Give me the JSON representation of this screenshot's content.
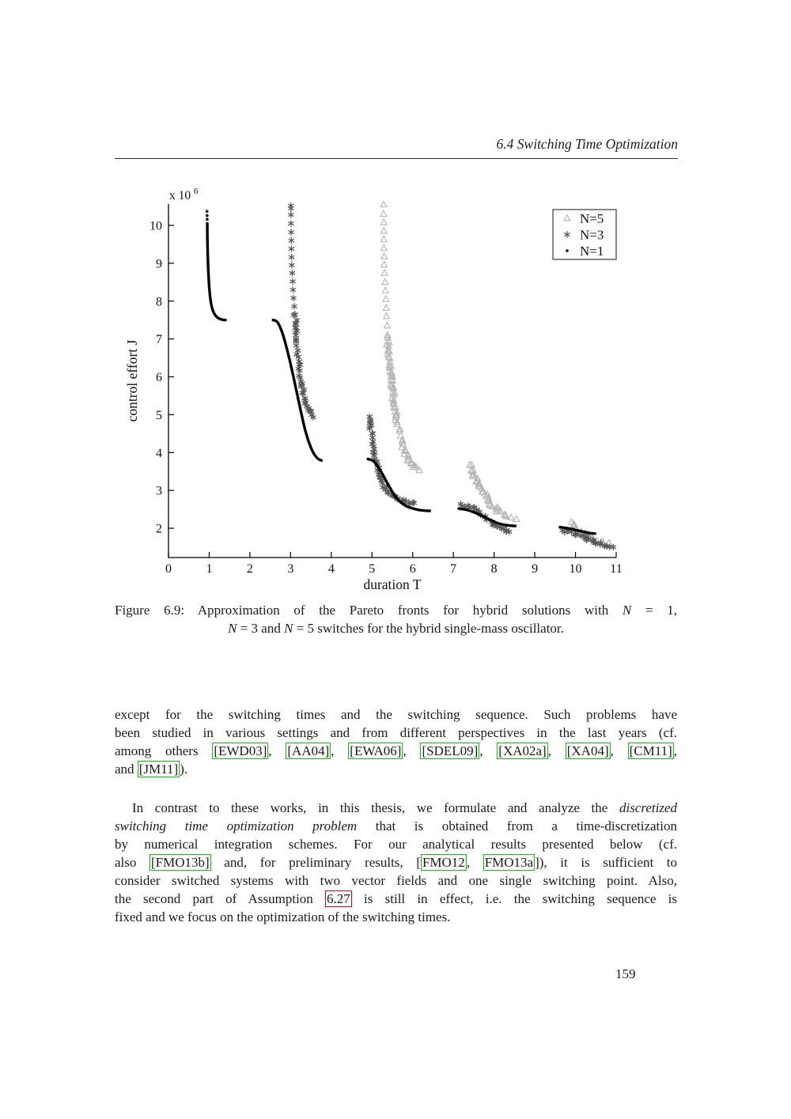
{
  "header": {
    "title": "6.4 Switching Time Optimization"
  },
  "page": {
    "number": "159"
  },
  "links": {
    "cite_border_color": "#00cc00",
    "ref_border_color": "#e60000"
  },
  "figure_caption": {
    "lines": [
      {
        "align": "justify",
        "segs": [
          {
            "t": "Figure 6.9: Approximation of the Pareto fronts for hybrid solutions with ",
            "s": "p"
          },
          {
            "t": "N",
            "s": "i"
          },
          {
            "t": " = 1,",
            "s": "p"
          }
        ]
      },
      {
        "align": "center",
        "segs": [
          {
            "t": "N",
            "s": "i"
          },
          {
            "t": " = 3 and ",
            "s": "p"
          },
          {
            "t": "N",
            "s": "i"
          },
          {
            "t": " = 5 switches for the hybrid single-mass oscillator.",
            "s": "p"
          }
        ]
      }
    ]
  },
  "paragraphs": {
    "p1": {
      "lines": [
        {
          "align": "justify",
          "segs": [
            {
              "t": "except for the switching times and the switching sequence.  Such problems have",
              "s": "p"
            }
          ]
        },
        {
          "align": "justify",
          "segs": [
            {
              "t": "been studied in various settings and from different perspectives in the last years (cf.",
              "s": "p"
            }
          ]
        },
        {
          "align": "justify",
          "segs": [
            {
              "t": "among others ",
              "s": "p"
            },
            {
              "t": "[EWD03]",
              "s": "g"
            },
            {
              "t": ", ",
              "s": "p"
            },
            {
              "t": "[AA04]",
              "s": "g"
            },
            {
              "t": ", ",
              "s": "p"
            },
            {
              "t": "[EWA06]",
              "s": "g"
            },
            {
              "t": ", ",
              "s": "p"
            },
            {
              "t": "[SDEL09]",
              "s": "g"
            },
            {
              "t": ", ",
              "s": "p"
            },
            {
              "t": "[XA02a]",
              "s": "g"
            },
            {
              "t": ", ",
              "s": "p"
            },
            {
              "t": "[XA04]",
              "s": "g"
            },
            {
              "t": ", ",
              "s": "p"
            },
            {
              "t": "[CM11]",
              "s": "g"
            },
            {
              "t": ",",
              "s": "p"
            }
          ]
        },
        {
          "align": "left",
          "segs": [
            {
              "t": "and ",
              "s": "p"
            },
            {
              "t": "[JM11]",
              "s": "g"
            },
            {
              "t": ").",
              "s": "p"
            }
          ]
        }
      ]
    },
    "p2": {
      "lines": [
        {
          "align": "justify",
          "indent": true,
          "segs": [
            {
              "t": "In contrast to these works, in this thesis, we formulate and analyze the ",
              "s": "p"
            },
            {
              "t": "discretized",
              "s": "i"
            }
          ]
        },
        {
          "align": "justify",
          "segs": [
            {
              "t": "switching time optimization problem",
              "s": "i"
            },
            {
              "t": " that is obtained from a time-discretization",
              "s": "p"
            }
          ]
        },
        {
          "align": "justify",
          "segs": [
            {
              "t": "by numerical integration schemes.  For our analytical results presented below (cf.",
              "s": "p"
            }
          ]
        },
        {
          "align": "justify",
          "segs": [
            {
              "t": "also ",
              "s": "p"
            },
            {
              "t": "[FMO13b]",
              "s": "g"
            },
            {
              "t": " and, for preliminary results, [",
              "s": "p"
            },
            {
              "t": "FMO12",
              "s": "g"
            },
            {
              "t": ", ",
              "s": "p"
            },
            {
              "t": "FMO13a",
              "s": "g"
            },
            {
              "t": "]), it is sufficient to",
              "s": "p"
            }
          ]
        },
        {
          "align": "justify",
          "segs": [
            {
              "t": "consider switched systems with two vector fields and one single switching point.  Also,",
              "s": "p"
            }
          ]
        },
        {
          "align": "justify",
          "segs": [
            {
              "t": "the second part of Assumption ",
              "s": "p"
            },
            {
              "t": "6.27",
              "s": "r"
            },
            {
              "t": " is still in effect, i.e. the switching sequence is",
              "s": "p"
            }
          ]
        },
        {
          "align": "left",
          "segs": [
            {
              "t": "fixed and we focus on the optimization of the switching times.",
              "s": "p"
            }
          ]
        }
      ]
    }
  },
  "chart_data": {
    "type": "scatter",
    "title": "",
    "xlabel": "duration T",
    "ylabel": "control effort J",
    "y_exponent_label": "x 10",
    "y_exponent": "6",
    "y_units": "values of J are in units of 1e6",
    "xlim": [
      0,
      11
    ],
    "ylim": [
      1.23,
      10.56
    ],
    "x_ticks": [
      0,
      1,
      2,
      3,
      4,
      5,
      6,
      7,
      8,
      9,
      10,
      11
    ],
    "y_ticks": [
      2,
      3,
      4,
      5,
      6,
      7,
      8,
      9,
      10
    ],
    "grid": false,
    "legend": {
      "position": "top-right",
      "entries": [
        {
          "label": "N=5",
          "marker": "triangle",
          "color": "#b4b4b4"
        },
        {
          "label": "N=3",
          "marker": "asterisk",
          "color": "#585858"
        },
        {
          "label": "N=1",
          "marker": "dot",
          "color": "#000000"
        }
      ]
    },
    "series": [
      {
        "name": "N=5",
        "marker": "triangle",
        "color": "#b4b4b4",
        "render": "scatter",
        "seed": 11,
        "segments": [
          {
            "per_point": true,
            "points": [
              [
                5.285,
                10.55
              ],
              [
                5.285,
                10.3
              ],
              [
                5.29,
                10.08
              ],
              [
                5.29,
                9.85
              ],
              [
                5.29,
                9.63
              ],
              [
                5.295,
                9.4
              ],
              [
                5.3,
                9.18
              ],
              [
                5.3,
                8.96
              ],
              [
                5.31,
                8.74
              ],
              [
                5.32,
                8.5
              ],
              [
                5.33,
                8.28
              ],
              [
                5.34,
                8.05
              ],
              [
                5.35,
                7.82
              ],
              [
                5.36,
                7.6
              ],
              [
                5.37,
                7.35
              ],
              [
                5.38,
                7.1
              ]
            ]
          },
          {
            "spacing": 2.2,
            "jitter": 2.2,
            "points": [
              [
                5.38,
                7.1
              ],
              [
                5.44,
                6.3
              ],
              [
                5.52,
                5.55
              ],
              [
                5.63,
                4.8
              ],
              [
                5.77,
                4.15
              ],
              [
                5.92,
                3.75
              ],
              [
                6.08,
                3.6
              ],
              [
                6.17,
                3.56
              ]
            ]
          },
          {
            "spacing": 2.0,
            "jitter": 2.6,
            "points": [
              [
                7.4,
                3.67
              ],
              [
                7.52,
                3.38
              ],
              [
                7.68,
                3.05
              ],
              [
                7.88,
                2.72
              ],
              [
                8.08,
                2.48
              ],
              [
                8.28,
                2.33
              ]
            ]
          },
          {
            "per_point": true,
            "points": [
              [
                8.3,
                2.31
              ],
              [
                8.42,
                2.28
              ],
              [
                8.55,
                2.24
              ]
            ]
          },
          {
            "spacing": 2.2,
            "jitter": 2.4,
            "points": [
              [
                9.9,
                2.16
              ],
              [
                9.98,
                2.08
              ],
              [
                10.1,
                1.95
              ],
              [
                10.25,
                1.82
              ],
              [
                10.4,
                1.72
              ],
              [
                10.5,
                1.68
              ]
            ]
          },
          {
            "per_point": true,
            "points": [
              [
                10.52,
                1.67
              ],
              [
                10.66,
                1.64
              ],
              [
                10.82,
                1.61
              ]
            ]
          }
        ]
      },
      {
        "name": "N=3",
        "marker": "asterisk",
        "color": "#585858",
        "render": "scatter",
        "seed": 7,
        "segments": [
          {
            "per_point": true,
            "points": [
              [
                3.005,
                10.52
              ],
              [
                3.01,
                10.45
              ],
              [
                3.01,
                10.28
              ],
              [
                3.01,
                10.05
              ],
              [
                3.015,
                9.82
              ],
              [
                3.02,
                9.6
              ],
              [
                3.02,
                9.38
              ],
              [
                3.025,
                9.16
              ],
              [
                3.03,
                8.95
              ],
              [
                3.04,
                8.74
              ],
              [
                3.05,
                8.52
              ],
              [
                3.06,
                8.3
              ],
              [
                3.07,
                8.08
              ],
              [
                3.09,
                7.86
              ],
              [
                3.11,
                7.65
              ]
            ]
          },
          {
            "spacing": 2.4,
            "jitter": 2.0,
            "points": [
              [
                3.11,
                7.65
              ],
              [
                3.16,
                6.9
              ],
              [
                3.22,
                6.2
              ],
              [
                3.3,
                5.65
              ],
              [
                3.41,
                5.2
              ],
              [
                3.56,
                4.9
              ]
            ]
          },
          {
            "spacing": 2.2,
            "jitter": 2.0,
            "points": [
              [
                4.94,
                4.95
              ],
              [
                4.99,
                4.5
              ],
              [
                5.07,
                3.95
              ],
              [
                5.18,
                3.45
              ],
              [
                5.33,
                3.05
              ],
              [
                5.52,
                2.85
              ],
              [
                5.75,
                2.74
              ],
              [
                5.95,
                2.69
              ],
              [
                6.08,
                2.66
              ]
            ]
          },
          {
            "spacing": 2.4,
            "jitter": 2.2,
            "points": [
              [
                7.18,
                2.64
              ],
              [
                7.45,
                2.55
              ],
              [
                7.72,
                2.36
              ],
              [
                7.98,
                2.14
              ],
              [
                8.2,
                1.99
              ],
              [
                8.38,
                1.91
              ]
            ]
          },
          {
            "spacing": 2.4,
            "jitter": 2.0,
            "points": [
              [
                9.68,
                1.94
              ],
              [
                9.95,
                1.88
              ],
              [
                10.18,
                1.78
              ],
              [
                10.42,
                1.65
              ],
              [
                10.65,
                1.56
              ],
              [
                10.86,
                1.51
              ]
            ]
          },
          {
            "per_point": true,
            "points": [
              [
                10.93,
                1.5
              ]
            ]
          }
        ]
      },
      {
        "name": "N=1",
        "marker": "dot",
        "color": "#000000",
        "render": "line",
        "seed": 3,
        "segments": [
          {
            "per_point": true,
            "points": [
              [
                0.947,
                10.37
              ],
              [
                0.949,
                10.26
              ],
              [
                0.951,
                10.16
              ]
            ]
          },
          {
            "points": [
              [
                0.953,
                10.05
              ],
              [
                0.958,
                9.55
              ],
              [
                0.968,
                9.1
              ],
              [
                0.985,
                8.65
              ],
              [
                1.01,
                8.25
              ],
              [
                1.05,
                7.92
              ],
              [
                1.11,
                7.7
              ],
              [
                1.2,
                7.57
              ],
              [
                1.32,
                7.51
              ],
              [
                1.4,
                7.5
              ]
            ]
          },
          {
            "points": [
              [
                2.57,
                7.5
              ],
              [
                2.68,
                7.44
              ],
              [
                2.8,
                7.15
              ],
              [
                2.93,
                6.65
              ],
              [
                3.07,
                6.0
              ],
              [
                3.22,
                5.25
              ],
              [
                3.37,
                4.55
              ],
              [
                3.52,
                4.08
              ],
              [
                3.65,
                3.86
              ],
              [
                3.76,
                3.79
              ]
            ]
          },
          {
            "points": [
              [
                4.9,
                3.83
              ],
              [
                5.05,
                3.76
              ],
              [
                5.22,
                3.5
              ],
              [
                5.4,
                3.15
              ],
              [
                5.6,
                2.8
              ],
              [
                5.82,
                2.6
              ],
              [
                6.05,
                2.51
              ],
              [
                6.25,
                2.47
              ],
              [
                6.42,
                2.46
              ]
            ]
          },
          {
            "points": [
              [
                7.13,
                2.52
              ],
              [
                7.35,
                2.48
              ],
              [
                7.6,
                2.38
              ],
              [
                7.85,
                2.25
              ],
              [
                8.1,
                2.13
              ],
              [
                8.32,
                2.08
              ],
              [
                8.52,
                2.06
              ]
            ]
          },
          {
            "points": [
              [
                9.62,
                2.03
              ],
              [
                9.85,
                1.99
              ],
              [
                10.1,
                1.93
              ],
              [
                10.3,
                1.88
              ],
              [
                10.48,
                1.86
              ]
            ]
          }
        ]
      }
    ]
  }
}
